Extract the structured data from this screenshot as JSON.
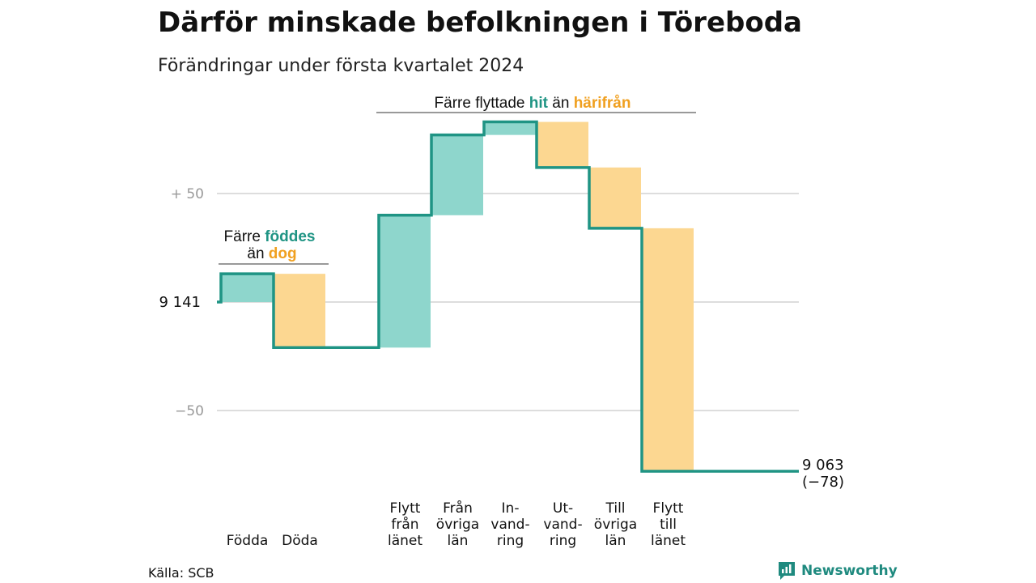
{
  "title": "Därför minskade befolkningen i Töreboda",
  "subtitle": "Förändringar under första kvartalet 2024",
  "source": "Källa: SCB",
  "brand": "Newsworthy",
  "colors": {
    "increase": "#8ed6cc",
    "decrease": "#fcd791",
    "line": "#1f9484",
    "teal_text": "#1f9484",
    "orange_text": "#f0a020",
    "grid": "#dddddd"
  },
  "annotations": {
    "births_deaths": {
      "line1_prefix": "Färre",
      "line1_highlight": "föddes",
      "line2_prefix": "än",
      "line2_highlight": "dog"
    },
    "moves": {
      "prefix": "Färre flyttade",
      "highlight_in": "hit",
      "middle": "än",
      "highlight_out": "härifrån"
    }
  },
  "chart_data": {
    "type": "waterfall",
    "title": "Därför minskade befolkningen i Töreboda",
    "subtitle": "Förändringar under första kvartalet 2024",
    "start_value": 9141,
    "start_label": "9 141",
    "end_value": 9063,
    "end_label": "9 063",
    "net_change_label": "(−78)",
    "y_ticks": [
      {
        "value": 50,
        "label": "+  50"
      },
      {
        "value": 0,
        "label": ""
      },
      {
        "value": -50,
        "label": "−50"
      }
    ],
    "ylim": [
      -80,
      85
    ],
    "items": [
      {
        "label": [
          "Födda"
        ],
        "value": 13,
        "direction": "in"
      },
      {
        "label": [
          "Döda"
        ],
        "value": -34,
        "direction": "out"
      },
      {
        "label": [],
        "value": 0,
        "direction": "gap"
      },
      {
        "label": [
          "Flytt",
          "från",
          "länet"
        ],
        "value": 61,
        "direction": "in"
      },
      {
        "label": [
          "Från",
          "övriga",
          "län"
        ],
        "value": 37,
        "direction": "in"
      },
      {
        "label": [
          "In-",
          "vand-",
          "ring"
        ],
        "value": 6,
        "direction": "in"
      },
      {
        "label": [
          "Ut-",
          "vand-",
          "ring"
        ],
        "value": -21,
        "direction": "out"
      },
      {
        "label": [
          "Till",
          "övriga",
          "län"
        ],
        "value": -28,
        "direction": "out"
      },
      {
        "label": [
          "Flytt",
          "till",
          "länet"
        ],
        "value": -112,
        "direction": "out"
      }
    ]
  }
}
